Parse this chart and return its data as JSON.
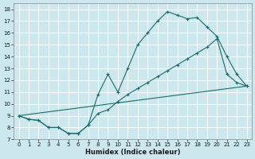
{
  "xlabel": "Humidex (Indice chaleur)",
  "bg_color": "#cce8ee",
  "grid_color": "#ffffff",
  "line_color": "#1a6b6b",
  "xlim": [
    -0.5,
    23.5
  ],
  "ylim": [
    7,
    18.5
  ],
  "xticks": [
    0,
    1,
    2,
    3,
    4,
    5,
    6,
    7,
    8,
    9,
    10,
    11,
    12,
    13,
    14,
    15,
    16,
    17,
    18,
    19,
    20,
    21,
    22,
    23
  ],
  "yticks": [
    7,
    8,
    9,
    10,
    11,
    12,
    13,
    14,
    15,
    16,
    17,
    18
  ],
  "line1_x": [
    0,
    1,
    2,
    3,
    4,
    5,
    6,
    7,
    8,
    9,
    10,
    11,
    12,
    13,
    14,
    15,
    16,
    17,
    18,
    19,
    20,
    21,
    22,
    23
  ],
  "line1_y": [
    9.0,
    8.7,
    8.6,
    8.0,
    8.0,
    7.5,
    7.5,
    8.2,
    10.8,
    12.5,
    11.0,
    13.0,
    15.0,
    16.0,
    17.0,
    17.8,
    17.5,
    17.2,
    17.3,
    16.5,
    15.7,
    14.0,
    12.5,
    11.5
  ],
  "line2_x": [
    0,
    1,
    2,
    3,
    4,
    5,
    6,
    7,
    8,
    9,
    10,
    11,
    12,
    13,
    14,
    15,
    16,
    17,
    18,
    19,
    20,
    21,
    22,
    23
  ],
  "line2_y": [
    9.0,
    8.7,
    8.6,
    8.0,
    8.0,
    7.5,
    7.5,
    8.2,
    9.2,
    9.5,
    10.2,
    10.8,
    11.3,
    11.8,
    12.3,
    12.8,
    13.3,
    13.8,
    14.3,
    14.8,
    15.5,
    12.5,
    11.8,
    11.5
  ],
  "line3_x": [
    0,
    23
  ],
  "line3_y": [
    9.0,
    11.5
  ],
  "xlabel_fontsize": 6.0,
  "tick_fontsize": 5.0
}
